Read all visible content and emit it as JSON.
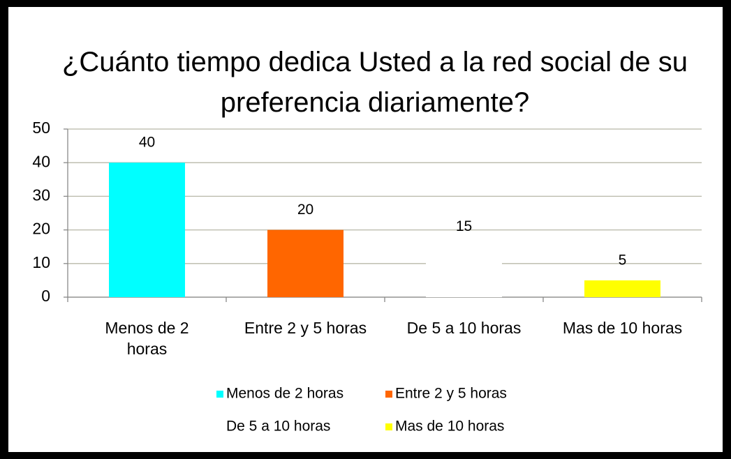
{
  "chart_data": {
    "type": "bar",
    "title": "¿Cuánto tiempo dedica Usted a la red social de su preferencia diariamente?",
    "categories": [
      "Menos de 2 horas",
      "Entre 2 y 5 horas",
      "De 5 a 10 horas",
      "Mas de 10 horas"
    ],
    "values": [
      40,
      20,
      15,
      5
    ],
    "colors": [
      "#00ffff",
      "#ff6600",
      "#ffffff",
      "#ffff00"
    ],
    "ylim": [
      0,
      50
    ],
    "yticks": [
      0,
      10,
      20,
      30,
      40,
      50
    ],
    "grid": true,
    "legend": "bottom"
  }
}
